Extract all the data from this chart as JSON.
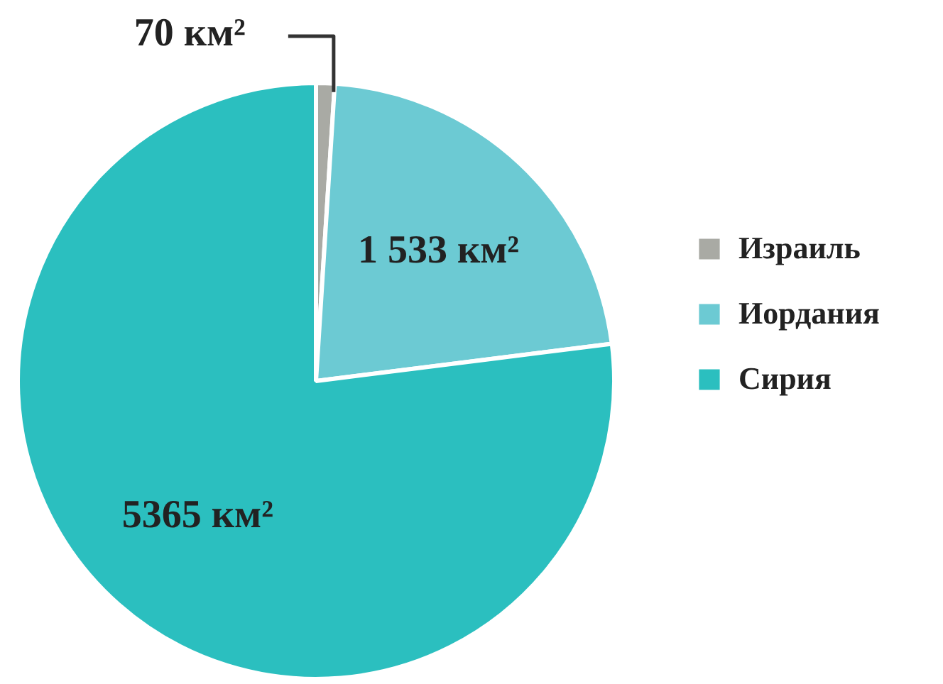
{
  "chart_data": {
    "type": "pie",
    "categories": [
      "Израиль",
      "Иордания",
      "Сирия"
    ],
    "values": [
      70,
      1533,
      5365
    ],
    "colors": [
      "#a9aaa4",
      "#6ccad3",
      "#2bbfbf"
    ],
    "value_labels": [
      "70 км²",
      "1 533 км²",
      "5365 км²"
    ],
    "legend": "right"
  }
}
